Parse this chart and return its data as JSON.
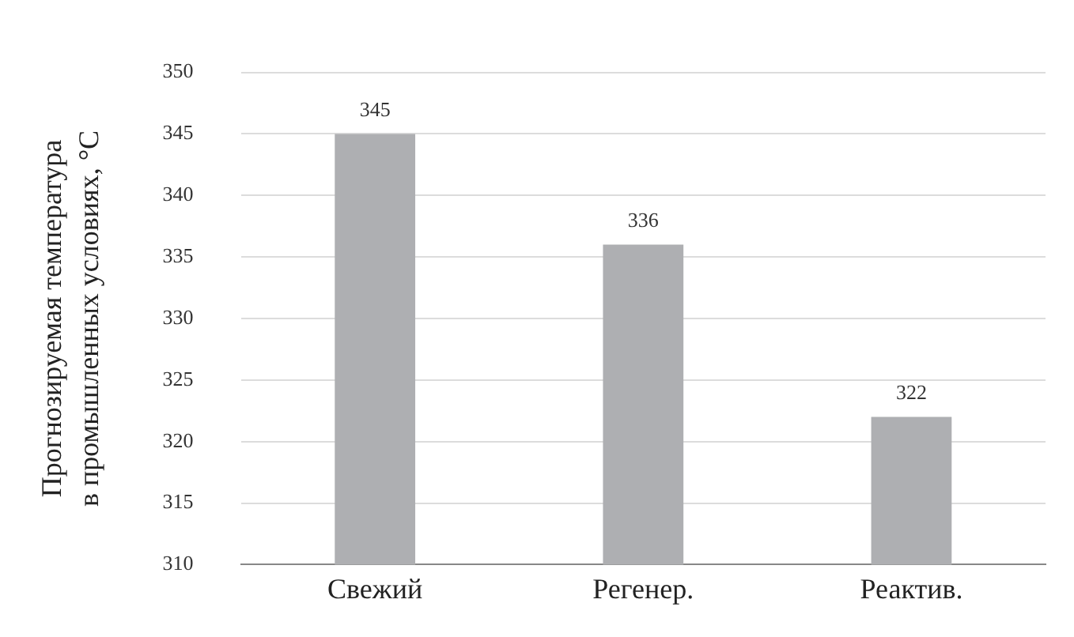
{
  "chart_data": {
    "type": "bar",
    "ylabel": "Прогнозируемая температура в промышленных условиях, °C",
    "categories": [
      "Свежий",
      "Регенер.",
      "Реактив."
    ],
    "values": [
      345,
      336,
      322
    ],
    "color": "#aeafb2",
    "ylim": [
      310,
      350
    ],
    "yticks": [
      310,
      315,
      320,
      325,
      330,
      335,
      340,
      345,
      350
    ],
    "grid": "y",
    "data_labels": true
  }
}
